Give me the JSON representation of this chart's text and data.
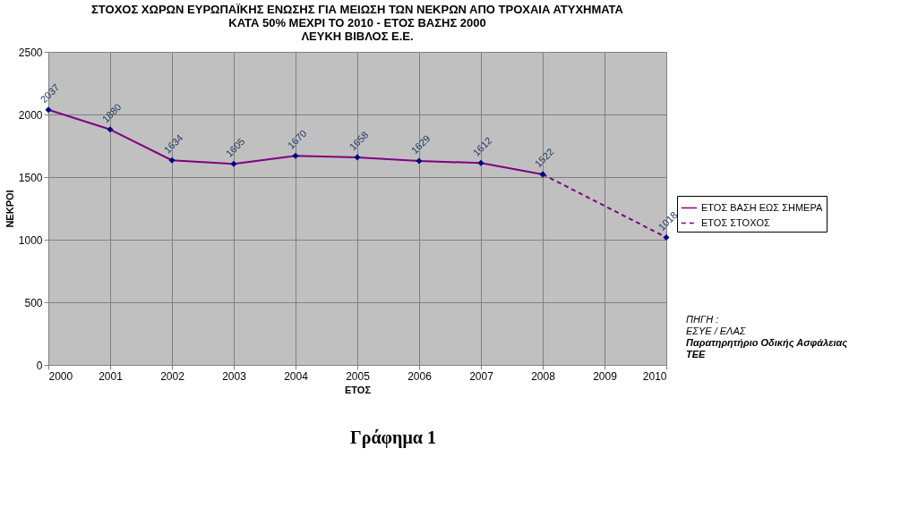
{
  "chart_data": {
    "type": "line",
    "title": "ΣΤΟΧΟΣ ΧΩΡΩΝ ΕΥΡΩΠΑΪΚΗΣ ΕΝΩΣΗΣ ΓΙΑ ΜΕΙΩΣΗ ΤΩΝ ΝΕΚΡΩΝ ΑΠΟ ΤΡΟΧΑΙΑ ΑΤΥΧΗΜΑΤΑ\nΚΑΤΑ 50% ΜΕΧΡΙ ΤΟ 2010 - ΕΤΟΣ ΒΑΣΗΣ 2000\nΛΕΥΚΗ ΒΙΒΛΟΣ Ε.Ε.",
    "xlabel": "ΕΤΟΣ",
    "ylabel": "ΝΕΚΡΟΙ",
    "xlim": [
      2000,
      2010
    ],
    "xticks": [
      2000,
      2001,
      2002,
      2003,
      2004,
      2005,
      2006,
      2007,
      2008,
      2009,
      2010
    ],
    "ylim": [
      0,
      2500
    ],
    "yticks": [
      0,
      500,
      1000,
      1500,
      2000,
      2500
    ],
    "grid": true,
    "legend": "right",
    "marker": "diamond",
    "series": [
      {
        "name": "ΕΤΟΣ ΒΑΣΗ ΕΩΣ ΣΗΜΕΡΑ",
        "color": "#800080",
        "line_style": "solid",
        "x": [
          2000,
          2001,
          2002,
          2003,
          2004,
          2005,
          2006,
          2007,
          2008
        ],
        "values": [
          2037,
          1880,
          1634,
          1605,
          1670,
          1658,
          1629,
          1612,
          1522
        ],
        "value_labels": [
          "2037",
          "1880",
          "1634",
          "1605",
          "1670",
          "1658",
          "1629",
          "1612",
          "1522"
        ]
      },
      {
        "name": "ΕΤΟΣ ΣΤΟΧΟΣ",
        "color": "#800080",
        "line_style": "dashed",
        "x": [
          2008,
          2010
        ],
        "values": [
          1522,
          1018
        ],
        "value_labels": [
          null,
          "1018"
        ]
      }
    ],
    "annotations": [
      "ΠΗΓΗ :",
      "ΕΣΥΕ / ΕΛΑΣ",
      "Παρατηρητήριο Οδικής Ασφάλειας",
      "ΤΕΕ",
      "Γράφημα 1"
    ]
  }
}
